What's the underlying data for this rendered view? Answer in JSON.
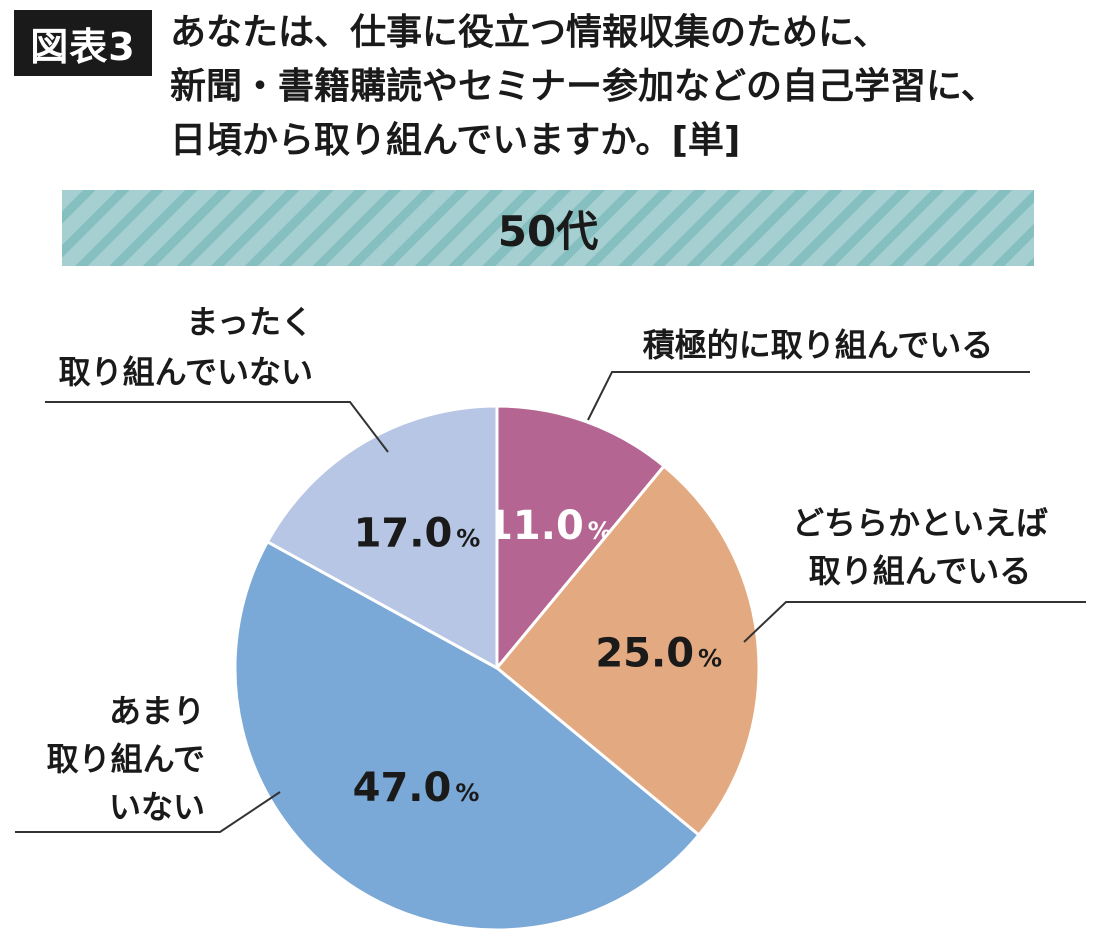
{
  "figure_badge": "図表3",
  "question_lines": [
    "あなたは、仕事に役立つ情報収集のために、",
    "新聞・書籍購読やセミナー参加などの自己学習に、",
    "日頃から取り組んでいますか。[単]"
  ],
  "chart_data": {
    "type": "pie",
    "title": "50代",
    "unit": "%",
    "slices": [
      {
        "label_lines": [
          "積極的に取り組んでいる"
        ],
        "value": 11.0,
        "display": "11.0",
        "color": "#b56591",
        "text_color": "#ffffff"
      },
      {
        "label_lines": [
          "どちらかといえば",
          "取り組んでいる"
        ],
        "value": 25.0,
        "display": "25.0",
        "color": "#e3a981",
        "text_color": "#1a1a1a"
      },
      {
        "label_lines": [
          "あまり",
          "取り組んで",
          "いない"
        ],
        "value": 47.0,
        "display": "47.0",
        "color": "#7aa8d7",
        "text_color": "#1a1a1a"
      },
      {
        "label_lines": [
          "まったく",
          "取り組んでいない"
        ],
        "value": 17.0,
        "display": "17.0",
        "color": "#b7c6e5",
        "text_color": "#1a1a1a"
      }
    ]
  }
}
